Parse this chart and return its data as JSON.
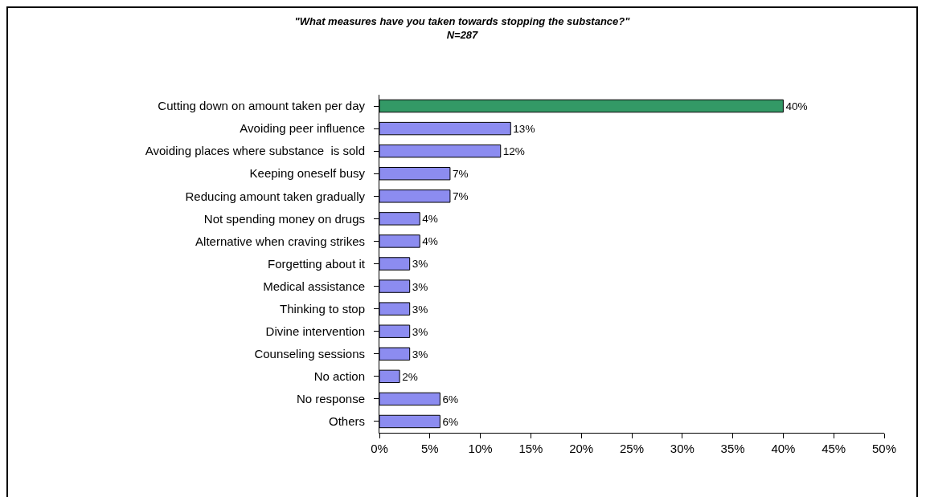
{
  "chart_data": {
    "type": "bar",
    "orientation": "horizontal",
    "title": "\"What measures have you taken towards stopping the substance?\"",
    "subtitle": "N=287",
    "categories": [
      "Cutting down on amount taken per day",
      "Avoiding peer influence",
      "Avoiding places where substance  is sold",
      "Keeping oneself busy",
      "Reducing amount taken gradually",
      "Not spending money on drugs",
      "Alternative when craving strikes",
      "Forgetting about it",
      "Medical assistance",
      "Thinking to stop",
      "Divine intervention",
      "Counseling sessions",
      "No action",
      "No response",
      "Others"
    ],
    "values": [
      40,
      13,
      12,
      7,
      7,
      4,
      4,
      3,
      3,
      3,
      3,
      3,
      2,
      6,
      6
    ],
    "colors": [
      "#339966",
      "#8c8cf0",
      "#8c8cf0",
      "#8c8cf0",
      "#8c8cf0",
      "#8c8cf0",
      "#8c8cf0",
      "#8c8cf0",
      "#8c8cf0",
      "#8c8cf0",
      "#8c8cf0",
      "#8c8cf0",
      "#8c8cf0",
      "#8c8cf0",
      "#8c8cf0"
    ],
    "value_labels": [
      "40%",
      "13%",
      "12%",
      "7%",
      "7%",
      "4%",
      "4%",
      "3%",
      "3%",
      "3%",
      "3%",
      "3%",
      "2%",
      "6%",
      "6%"
    ],
    "xlim": [
      0,
      50
    ],
    "xticks": [
      {
        "value": 0,
        "label": "0%"
      },
      {
        "value": 5,
        "label": "5%"
      },
      {
        "value": 10,
        "label": "10%"
      },
      {
        "value": 15,
        "label": "15%"
      },
      {
        "value": 20,
        "label": "20%"
      },
      {
        "value": 25,
        "label": "25%"
      },
      {
        "value": 30,
        "label": "30%"
      },
      {
        "value": 35,
        "label": "35%"
      },
      {
        "value": 40,
        "label": "40%"
      },
      {
        "value": 45,
        "label": "45%"
      },
      {
        "value": 50,
        "label": "50%"
      }
    ],
    "grid": false
  }
}
